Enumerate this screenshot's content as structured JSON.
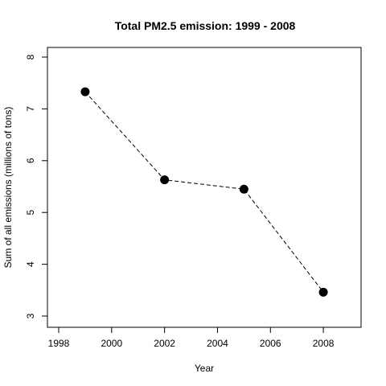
{
  "chart_data": {
    "type": "line",
    "title": "Total PM2.5 emission: 1999 - 2008",
    "xlabel": "Year",
    "ylabel": "Sum of all emissions (millions of tons)",
    "x": [
      1999,
      2002,
      2005,
      2008
    ],
    "series": [
      {
        "values": [
          7.33,
          5.63,
          5.45,
          3.46
        ]
      }
    ],
    "xlim": [
      1998,
      2009
    ],
    "ylim": [
      3,
      8
    ],
    "xticks": [
      1998,
      2000,
      2002,
      2004,
      2006,
      2008
    ],
    "yticks": [
      3,
      4,
      5,
      6,
      7,
      8
    ],
    "line_style": "dashed",
    "marker": "filled-circle",
    "grid": false,
    "legend": "none",
    "colors": {
      "line": "#000000",
      "marker": "#000000",
      "axis": "#000000",
      "background": "#ffffff"
    }
  }
}
